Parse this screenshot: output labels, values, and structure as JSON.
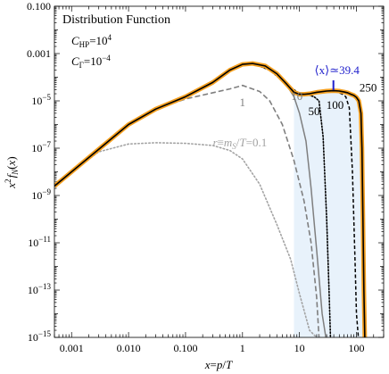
{
  "chart_data": {
    "type": "line",
    "title": "Distribution Function",
    "params": [
      "C_HP=10^4",
      "C_Γ=10^-4"
    ],
    "xlabel": "x=p/T",
    "ylabel": "x^2 f_N(x)",
    "xscale": "log",
    "yscale": "log",
    "xlim": [
      0.0005,
      300
    ],
    "ylim": [
      1e-15,
      0.1
    ],
    "xticks": [
      "0.001",
      "0.010",
      "0.100",
      "1",
      "10",
      "100"
    ],
    "yticks": [
      "0.100",
      "0.001",
      "10^-5",
      "10^-7",
      "10^-9",
      "10^-11",
      "10^-13",
      "10^-15"
    ],
    "mean_label": "⟨x⟩≃39.4",
    "mean_x": 39.4,
    "colors": {
      "total": "#f5a020",
      "core": "#000000",
      "gray": "#7f7f7f",
      "light_gray": "#a3a3a3",
      "mean": "#2020cc",
      "fill": "#e8f2fb"
    },
    "series": [
      {
        "name": "0.1",
        "style": "dotted-lightgray",
        "x": [
          0.0005,
          0.001,
          0.003,
          0.01,
          0.03,
          0.1,
          0.3,
          0.6,
          1,
          2,
          4,
          7,
          10,
          15,
          20
        ],
        "y": [
          2.5e-09,
          1e-08,
          7e-08,
          1.5e-07,
          1.7e-07,
          1.6e-07,
          1.3e-07,
          8e-08,
          3.5e-08,
          3e-09,
          6e-11,
          2e-12,
          7e-14,
          2e-15,
          1e-15
        ]
      },
      {
        "name": "1",
        "style": "dashed-gray",
        "x": [
          0.0005,
          0.001,
          0.003,
          0.01,
          0.03,
          0.1,
          0.3,
          0.6,
          1,
          2,
          3,
          5,
          8,
          12,
          16,
          20,
          22
        ],
        "y": [
          2.5e-09,
          1e-08,
          9e-08,
          1e-06,
          4.5e-06,
          1.2e-05,
          2.2e-05,
          3.2e-05,
          4.5e-05,
          2.5e-05,
          1e-05,
          1e-06,
          3e-08,
          6e-10,
          1e-11,
          5e-14,
          1e-15
        ]
      },
      {
        "name": "10",
        "style": "solid-gray",
        "x": [
          0.0005,
          0.001,
          0.003,
          0.01,
          0.03,
          0.1,
          0.3,
          0.6,
          1,
          1.5,
          2.5,
          4,
          6,
          8,
          10,
          13,
          16,
          20,
          25,
          29
        ],
        "y": [
          2.5e-09,
          1e-08,
          9e-08,
          1e-06,
          4.5e-06,
          1.5e-05,
          6e-05,
          0.0002,
          0.00035,
          0.00038,
          0.0003,
          0.00014,
          4.5e-05,
          1.5e-05,
          3e-06,
          2e-07,
          2e-09,
          5e-12,
          1e-14,
          1e-15
        ]
      },
      {
        "name": "50",
        "style": "dotted-black",
        "x": [
          1.5,
          3,
          6,
          10,
          14,
          18,
          22,
          26,
          30,
          33,
          35
        ],
        "y": [
          0.00038,
          0.0002,
          5e-05,
          2e-05,
          1.8e-05,
          1.5e-05,
          1e-05,
          3e-07,
          1e-10,
          1e-13,
          1e-15
        ]
      },
      {
        "name": "100",
        "style": "dashed-black",
        "x": [
          10,
          15,
          25,
          35,
          45,
          55,
          65,
          75,
          85,
          95,
          100,
          108
        ],
        "y": [
          2e-05,
          1.9e-05,
          2.2e-05,
          2.5e-05,
          2.4e-05,
          2e-05,
          1.5e-05,
          5e-06,
          1e-08,
          1e-12,
          1e-14,
          1e-15
        ]
      },
      {
        "name": "250",
        "style": "total",
        "x": [
          0.0005,
          0.001,
          0.003,
          0.01,
          0.03,
          0.1,
          0.3,
          0.6,
          1,
          1.5,
          2.5,
          4,
          6,
          8,
          10,
          12,
          15,
          20,
          30,
          40,
          50,
          60,
          70,
          80,
          90,
          100,
          110,
          120,
          125,
          130,
          135,
          140
        ],
        "y": [
          2.5e-09,
          1e-08,
          9e-08,
          1e-06,
          4.5e-06,
          1.5e-05,
          6e-05,
          0.0002,
          0.00035,
          0.00038,
          0.0003,
          0.00014,
          5e-05,
          2.3e-05,
          1.9e-05,
          1.9e-05,
          2e-05,
          2.3e-05,
          2.6e-05,
          2.7e-05,
          2.6e-05,
          2.4e-05,
          2.2e-05,
          1.9e-05,
          1.7e-05,
          1.4e-05,
          1e-05,
          3e-06,
          1e-07,
          1e-10,
          1e-13,
          1e-15
        ]
      }
    ],
    "curve_labels": [
      {
        "text": "r≡m_S/T=0.1",
        "x": 0.9,
        "y": 1.2e-07,
        "color": "light_gray"
      },
      {
        "text": "1",
        "x": 1.0,
        "y": 6e-06,
        "color": "gray"
      },
      {
        "text": "10",
        "x": 9.0,
        "y": 1.1e-05,
        "color": "gray"
      },
      {
        "text": "50",
        "x": 18.0,
        "y": 2.5e-06,
        "color": "core"
      },
      {
        "text": "100",
        "x": 42.0,
        "y": 4.5e-06,
        "color": "core"
      },
      {
        "text": "250",
        "x": 160.0,
        "y": 2.5e-05,
        "color": "core"
      }
    ]
  }
}
